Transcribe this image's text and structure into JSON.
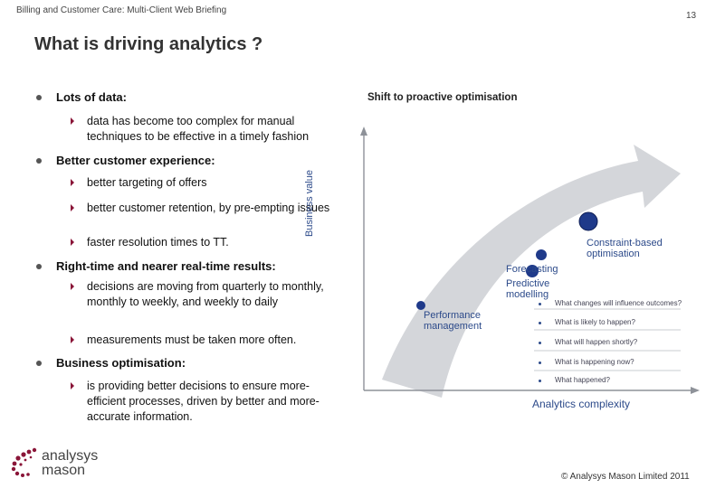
{
  "header": {
    "breadcrumb": "Billing and Customer Care: Multi-Client Web Briefing",
    "page_number": "13"
  },
  "title": "What is driving analytics ?",
  "bullets": [
    {
      "text": "Lots of data:",
      "sub": [
        "data has become too complex for manual techniques to be effective in a timely fashion"
      ]
    },
    {
      "text": "Better customer experience:",
      "sub": [
        "better targeting of offers",
        "better customer retention, by pre-empting issues",
        "faster resolution times to TT."
      ]
    },
    {
      "text": "Right-time and nearer real-time results:",
      "sub": [
        "decisions are moving from quarterly to monthly, monthly to weekly, and weekly to daily",
        "measurements must be taken more often."
      ]
    },
    {
      "text": "Business optimisation:",
      "sub": [
        "is providing better decisions to ensure more-efficient processes, driven by better and more-accurate information."
      ]
    }
  ],
  "diagram": {
    "title": "Shift to proactive optimisation",
    "y_axis_label": "Business value",
    "x_axis_label": "Analytics complexity",
    "stages": [
      "Performance management",
      "Predictive modelling",
      "Forecasting",
      "Constraint-based optimisation"
    ],
    "questions": [
      "What changes will influence outcomes?",
      "What is likely to happen?",
      "What will happen shortly?",
      "What is happening now?",
      "What happened?"
    ],
    "colors": {
      "arrow": "#d4d6da",
      "node": "#1f3a8a",
      "label": "#2c4a8a"
    }
  },
  "logo": {
    "line1": "analysys",
    "line2": "mason"
  },
  "footer": {
    "copyright": "© Analysys Mason Limited 2011"
  },
  "colors": {
    "bullet_arrow": "#8a1538",
    "logo_accent": "#8a1538"
  }
}
